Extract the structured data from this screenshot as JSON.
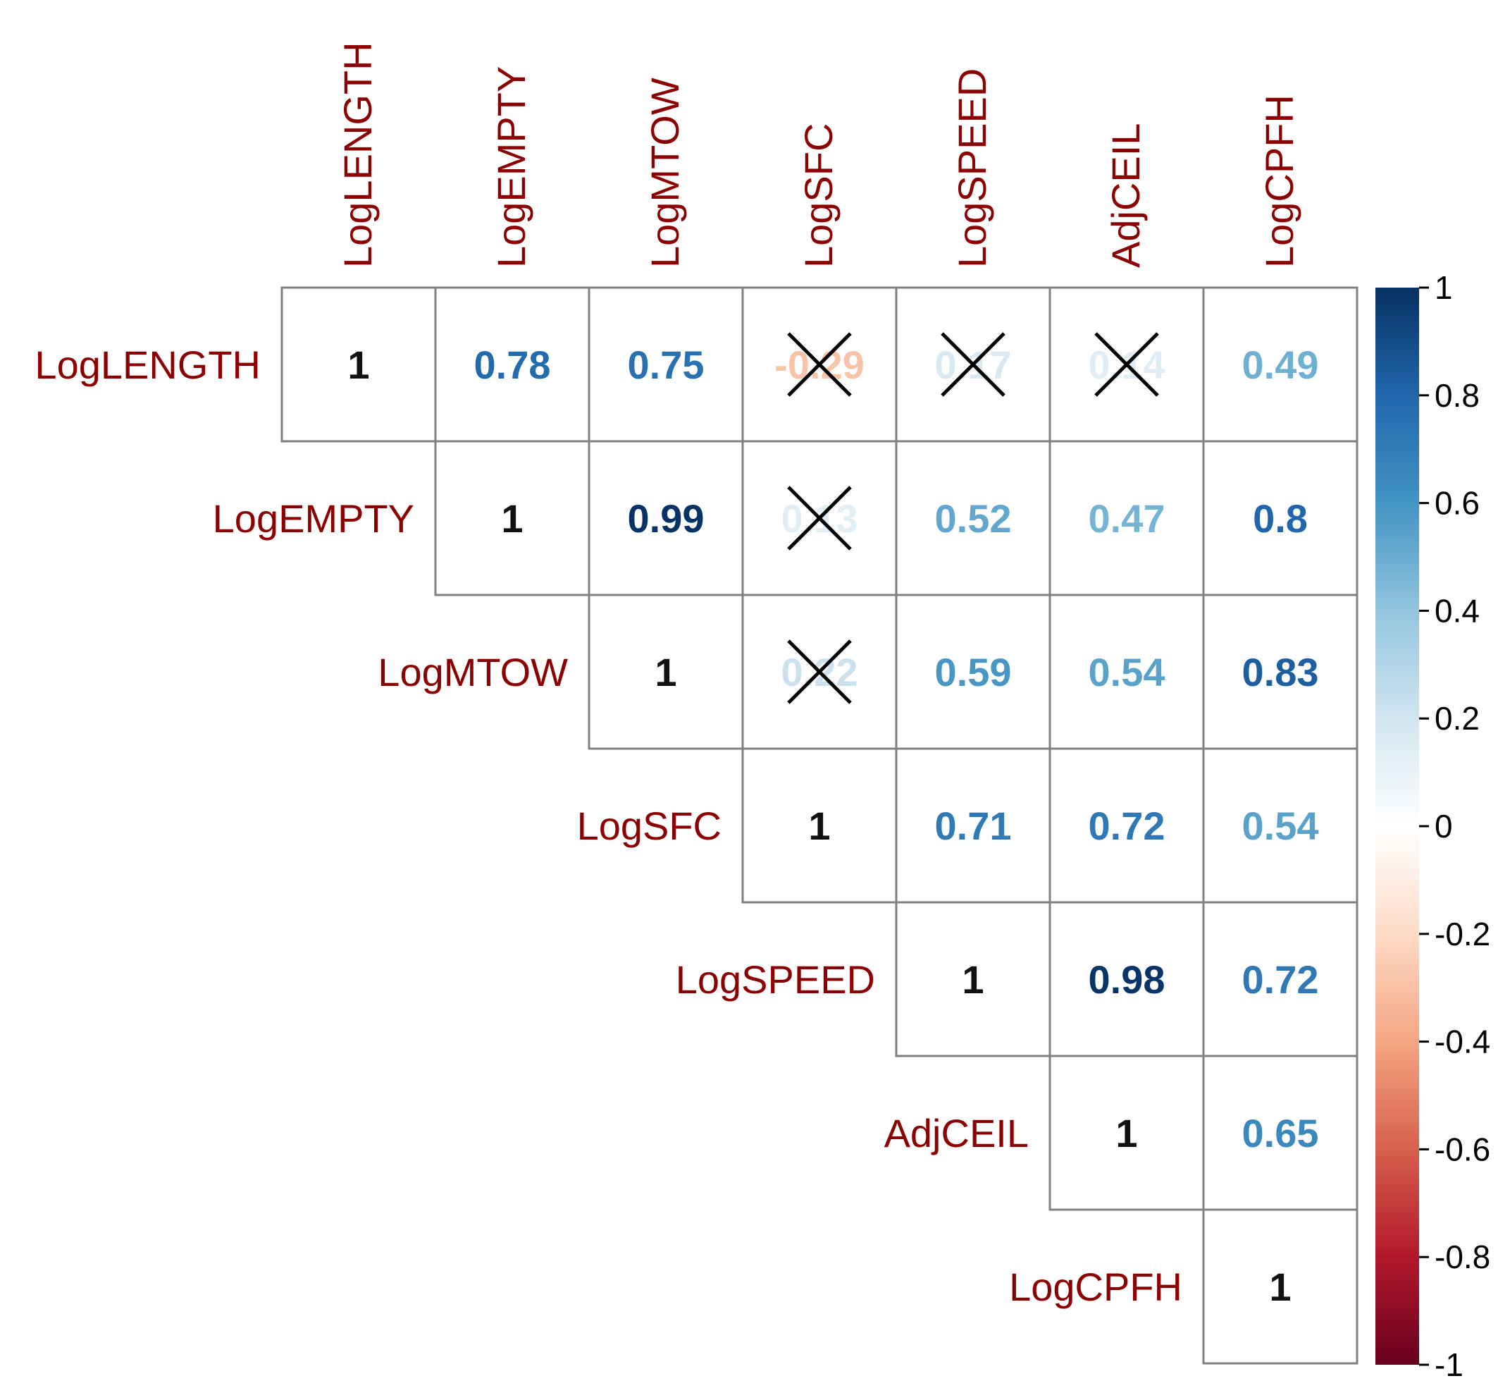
{
  "chart_data": {
    "type": "heatmap",
    "subtype": "correlation-upper-triangle",
    "variables": [
      "LogLENGTH",
      "LogEMPTY",
      "LogMTOW",
      "LogSFC",
      "LogSPEED",
      "AdjCEIL",
      "LogCPFH"
    ],
    "cells": [
      {
        "row": 0,
        "col": 0,
        "label": "1",
        "value": 1,
        "crossed": false
      },
      {
        "row": 0,
        "col": 1,
        "label": "0.78",
        "value": 0.78,
        "crossed": false
      },
      {
        "row": 0,
        "col": 2,
        "label": "0.75",
        "value": 0.75,
        "crossed": false
      },
      {
        "row": 0,
        "col": 3,
        "label": "-0.29",
        "value": -0.29,
        "crossed": true
      },
      {
        "row": 0,
        "col": 4,
        "label": "0.17",
        "value": 0.17,
        "crossed": true
      },
      {
        "row": 0,
        "col": 5,
        "label": "0.14",
        "value": 0.14,
        "crossed": true
      },
      {
        "row": 0,
        "col": 6,
        "label": "0.49",
        "value": 0.49,
        "crossed": false
      },
      {
        "row": 1,
        "col": 1,
        "label": "1",
        "value": 1,
        "crossed": false
      },
      {
        "row": 1,
        "col": 2,
        "label": "0.99",
        "value": 0.99,
        "crossed": false
      },
      {
        "row": 1,
        "col": 3,
        "label": "0.13",
        "value": 0.13,
        "crossed": true
      },
      {
        "row": 1,
        "col": 4,
        "label": "0.52",
        "value": 0.52,
        "crossed": false
      },
      {
        "row": 1,
        "col": 5,
        "label": "0.47",
        "value": 0.47,
        "crossed": false
      },
      {
        "row": 1,
        "col": 6,
        "label": "0.8",
        "value": 0.8,
        "crossed": false
      },
      {
        "row": 2,
        "col": 2,
        "label": "1",
        "value": 1,
        "crossed": false
      },
      {
        "row": 2,
        "col": 3,
        "label": "0.22",
        "value": 0.22,
        "crossed": true
      },
      {
        "row": 2,
        "col": 4,
        "label": "0.59",
        "value": 0.59,
        "crossed": false
      },
      {
        "row": 2,
        "col": 5,
        "label": "0.54",
        "value": 0.54,
        "crossed": false
      },
      {
        "row": 2,
        "col": 6,
        "label": "0.83",
        "value": 0.83,
        "crossed": false
      },
      {
        "row": 3,
        "col": 3,
        "label": "1",
        "value": 1,
        "crossed": false
      },
      {
        "row": 3,
        "col": 4,
        "label": "0.71",
        "value": 0.71,
        "crossed": false
      },
      {
        "row": 3,
        "col": 5,
        "label": "0.72",
        "value": 0.72,
        "crossed": false
      },
      {
        "row": 3,
        "col": 6,
        "label": "0.54",
        "value": 0.54,
        "crossed": false
      },
      {
        "row": 4,
        "col": 4,
        "label": "1",
        "value": 1,
        "crossed": false
      },
      {
        "row": 4,
        "col": 5,
        "label": "0.98",
        "value": 0.98,
        "crossed": false
      },
      {
        "row": 4,
        "col": 6,
        "label": "0.72",
        "value": 0.72,
        "crossed": false
      },
      {
        "row": 5,
        "col": 5,
        "label": "1",
        "value": 1,
        "crossed": false
      },
      {
        "row": 5,
        "col": 6,
        "label": "0.65",
        "value": 0.65,
        "crossed": false
      },
      {
        "row": 6,
        "col": 6,
        "label": "1",
        "value": 1,
        "crossed": false
      }
    ],
    "colorbar": {
      "range": [
        -1,
        1
      ],
      "ticks": [
        1,
        0.8,
        0.6,
        0.4,
        0.2,
        0,
        -0.2,
        -0.4,
        -0.6,
        -0.8,
        -1
      ],
      "tick_labels": [
        "1",
        "0.8",
        "0.6",
        "0.4",
        "0.2",
        "0",
        "-0.2",
        "-0.4",
        "-0.6",
        "-0.8",
        "-1"
      ],
      "stops": [
        {
          "v": -1.0,
          "c": "#67001F"
        },
        {
          "v": -0.8,
          "c": "#B2182B"
        },
        {
          "v": -0.6,
          "c": "#D6604D"
        },
        {
          "v": -0.4,
          "c": "#F4A582"
        },
        {
          "v": -0.2,
          "c": "#FDDBC7"
        },
        {
          "v": 0.0,
          "c": "#FFFFFF"
        },
        {
          "v": 0.2,
          "c": "#D1E5F0"
        },
        {
          "v": 0.4,
          "c": "#92C5DE"
        },
        {
          "v": 0.6,
          "c": "#4393C3"
        },
        {
          "v": 0.8,
          "c": "#2166AC"
        },
        {
          "v": 1.0,
          "c": "#053061"
        }
      ]
    },
    "colors": {
      "variable_label": "#8B0000",
      "cell_border": "#808080",
      "cross": "#000000",
      "tick_text": "#000000"
    }
  }
}
